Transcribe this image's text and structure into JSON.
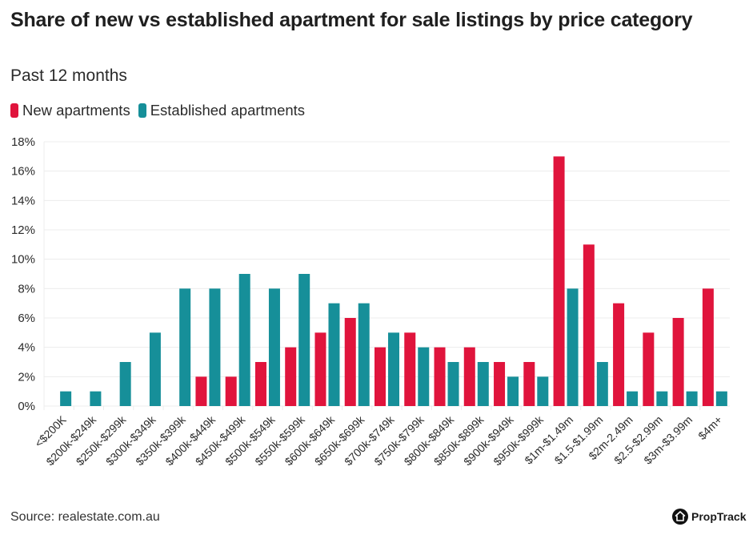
{
  "header": {
    "title": "Share of new vs established apartment for sale listings by price category",
    "subtitle": "Past 12 months"
  },
  "footer": {
    "source": "Source: realestate.com.au",
    "brand": "PropTrack",
    "brand_icon": "house-icon"
  },
  "colors": {
    "new": "#e0143c",
    "established": "#168f99",
    "grid": "#ececec"
  },
  "chart_data": {
    "type": "bar",
    "title": "Share of new vs established apartment for sale listings by price category",
    "subtitle": "Past 12 months",
    "xlabel": "",
    "ylabel": "",
    "ylim": [
      0,
      18
    ],
    "yticks": [
      "0%",
      "2%",
      "4%",
      "6%",
      "8%",
      "10%",
      "12%",
      "14%",
      "16%",
      "18%"
    ],
    "ytick_values": [
      0,
      2,
      4,
      6,
      8,
      10,
      12,
      14,
      16,
      18
    ],
    "grid": true,
    "legend_position": "top-left",
    "categories": [
      "<$200K",
      "$200k-$249k",
      "$250k-$299k",
      "$300k-$349k",
      "$350k-$399k",
      "$400k-$449k",
      "$450k-$499k",
      "$500k-$549k",
      "$550k-$599k",
      "$600k-$649k",
      "$650k-$699k",
      "$700k-$749k",
      "$750k-$799k",
      "$800k-$849k",
      "$850k-$899k",
      "$900k-$949k",
      "$950k-$999k",
      "$1m-$1.49m",
      "$1.5-$1.99m",
      "$2m-2.49m",
      "$2.5-$2.99m",
      "$3m-$3.99m",
      "$4m+"
    ],
    "series": [
      {
        "name": "New apartments",
        "values": [
          0,
          0,
          0,
          0,
          0,
          2,
          2,
          3,
          4,
          5,
          6,
          4,
          5,
          4,
          4,
          3,
          3,
          17,
          11,
          7,
          5,
          6,
          8
        ]
      },
      {
        "name": "Established apartments",
        "values": [
          1,
          1,
          3,
          5,
          8,
          8,
          9,
          8,
          9,
          7,
          7,
          5,
          4,
          3,
          3,
          2,
          2,
          8,
          3,
          1,
          1,
          1,
          1
        ]
      }
    ]
  }
}
